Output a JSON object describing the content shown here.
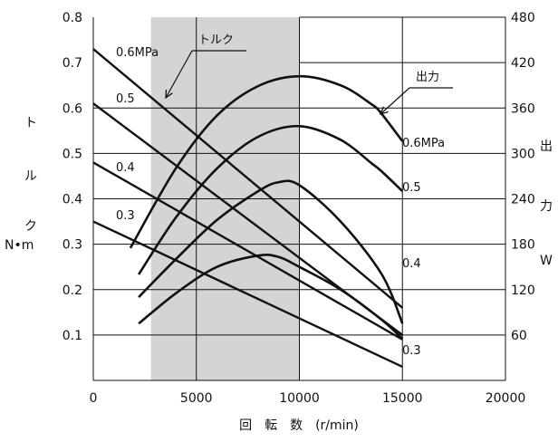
{
  "chart_data": {
    "type": "line",
    "x_axis": {
      "label": "回　転　数　(r/min)",
      "range": [
        0,
        20000
      ],
      "ticks": [
        "0",
        "5000",
        "10000",
        "15000",
        "20000"
      ]
    },
    "y_left": {
      "label_chars": [
        "ト",
        "ル",
        "ク",
        "N•m"
      ],
      "range": [
        0,
        0.8
      ],
      "ticks": [
        "0.1",
        "0.2",
        "0.3",
        "0.4",
        "0.5",
        "0.6",
        "0.7",
        "0.8"
      ]
    },
    "y_right": {
      "label_chars": [
        "出",
        "力",
        "W"
      ],
      "range": [
        0,
        480
      ],
      "ticks": [
        "60",
        "120",
        "180",
        "240",
        "300",
        "360",
        "420",
        "480"
      ]
    },
    "shaded_x_range": [
      2800,
      10000
    ],
    "grid": "vertical lines at 5000, 10000, 15000; horizontal lines at each tick",
    "torque_series": [
      {
        "name": "0.6MPa",
        "points": [
          [
            0,
            0.73
          ],
          [
            15000,
            0.16
          ]
        ]
      },
      {
        "name": "0.5",
        "points": [
          [
            0,
            0.61
          ],
          [
            15000,
            0.1
          ]
        ]
      },
      {
        "name": "0.4",
        "points": [
          [
            0,
            0.48
          ],
          [
            15000,
            0.09
          ]
        ]
      },
      {
        "name": "0.3",
        "points": [
          [
            0,
            0.35
          ],
          [
            15000,
            0.03
          ]
        ]
      }
    ],
    "output_series": [
      {
        "name": "0.6MPa",
        "points": [
          [
            1800,
            175
          ],
          [
            4000,
            280
          ],
          [
            6000,
            350
          ],
          [
            8000,
            389
          ],
          [
            10000,
            402
          ],
          [
            12000,
            390
          ],
          [
            13500,
            365
          ],
          [
            14000,
            352
          ],
          [
            15000,
            316
          ]
        ]
      },
      {
        "name": "0.5",
        "points": [
          [
            2200,
            140
          ],
          [
            4000,
            215
          ],
          [
            6000,
            280
          ],
          [
            8000,
            322
          ],
          [
            10000,
            336
          ],
          [
            12000,
            318
          ],
          [
            13500,
            287
          ],
          [
            14000,
            276
          ],
          [
            15000,
            250
          ]
        ]
      },
      {
        "name": "0.4",
        "points": [
          [
            2200,
            110
          ],
          [
            4000,
            160
          ],
          [
            6000,
            212
          ],
          [
            8000,
            250
          ],
          [
            9000,
            262
          ],
          [
            10000,
            258
          ],
          [
            12000,
            210
          ],
          [
            14000,
            140
          ],
          [
            15000,
            75
          ]
        ]
      },
      {
        "name": "0.3",
        "points": [
          [
            2200,
            75
          ],
          [
            4000,
            115
          ],
          [
            6000,
            150
          ],
          [
            8000,
            165
          ],
          [
            9000,
            163
          ],
          [
            10000,
            150
          ],
          [
            12000,
            120
          ],
          [
            14000,
            80
          ],
          [
            15000,
            55
          ]
        ]
      }
    ],
    "torque_labels": [
      "0.6MPa",
      "0.5",
      "0.4",
      "0.3"
    ],
    "output_labels": [
      "0.6MPa",
      "0.5",
      "0.4",
      "0.3"
    ],
    "annotations": {
      "torque_callout": "トルク",
      "output_callout": "出力"
    }
  }
}
